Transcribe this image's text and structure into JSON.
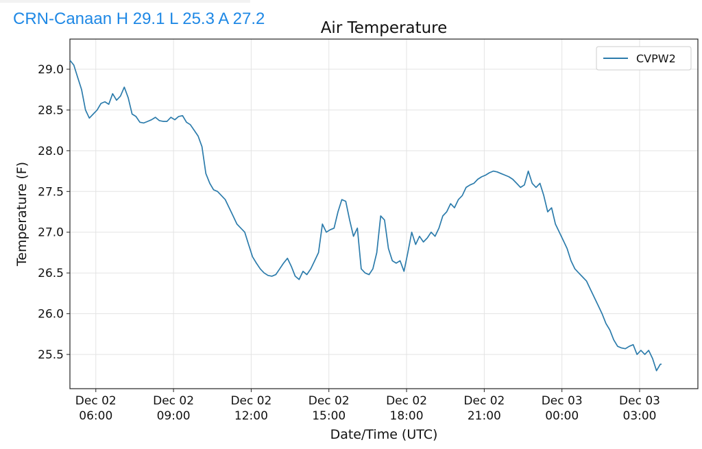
{
  "header": {
    "station_summary": "CRN-Canaan H 29.1 L 25.3 A 27.2"
  },
  "colors": {
    "header_text": "#1e88e5",
    "series_line": "#2b7bab",
    "grid": "#e3e3e3"
  },
  "chart_data": {
    "type": "line",
    "title": "Air Temperature",
    "xlabel": "Date/Time (UTC)",
    "ylabel": "Temperature (F)",
    "x_unit": "hours",
    "x_start": "Dec 02 05:00 UTC",
    "xlim": [
      "Dec 02 05:00",
      "Dec 03 05:15"
    ],
    "ylim": [
      25.08,
      29.37
    ],
    "grid": true,
    "legend_position": "top-right",
    "yticks": [
      {
        "value": 25.5,
        "label": "25.5"
      },
      {
        "value": 26.0,
        "label": "26.0"
      },
      {
        "value": 26.5,
        "label": "26.5"
      },
      {
        "value": 27.0,
        "label": "27.0"
      },
      {
        "value": 27.5,
        "label": "27.5"
      },
      {
        "value": 28.0,
        "label": "28.0"
      },
      {
        "value": 28.5,
        "label": "28.5"
      },
      {
        "value": 29.0,
        "label": "29.0"
      }
    ],
    "xticks": [
      {
        "value": "Dec 02 06:00",
        "line1": "Dec 02",
        "line2": "06:00"
      },
      {
        "value": "Dec 02 09:00",
        "line1": "Dec 02",
        "line2": "09:00"
      },
      {
        "value": "Dec 02 12:00",
        "line1": "Dec 02",
        "line2": "12:00"
      },
      {
        "value": "Dec 02 15:00",
        "line1": "Dec 02",
        "line2": "15:00"
      },
      {
        "value": "Dec 02 18:00",
        "line1": "Dec 02",
        "line2": "18:00"
      },
      {
        "value": "Dec 02 21:00",
        "line1": "Dec 02",
        "line2": "21:00"
      },
      {
        "value": "Dec 03 00:00",
        "line1": "Dec 03",
        "line2": "00:00"
      },
      {
        "value": "Dec 03 03:00",
        "line1": "Dec 03",
        "line2": "03:00"
      }
    ],
    "series": [
      {
        "name": "CVPW2",
        "points": [
          [
            "Dec 02 05:00",
            29.11
          ],
          [
            "Dec 02 05:09",
            29.05
          ],
          [
            "Dec 02 05:18",
            28.9
          ],
          [
            "Dec 02 05:27",
            28.75
          ],
          [
            "Dec 02 05:36",
            28.5
          ],
          [
            "Dec 02 05:45",
            28.4
          ],
          [
            "Dec 02 05:54",
            28.45
          ],
          [
            "Dec 02 06:03",
            28.5
          ],
          [
            "Dec 02 06:12",
            28.58
          ],
          [
            "Dec 02 06:21",
            28.6
          ],
          [
            "Dec 02 06:30",
            28.57
          ],
          [
            "Dec 02 06:39",
            28.7
          ],
          [
            "Dec 02 06:48",
            28.62
          ],
          [
            "Dec 02 06:57",
            28.67
          ],
          [
            "Dec 02 07:06",
            28.78
          ],
          [
            "Dec 02 07:15",
            28.65
          ],
          [
            "Dec 02 07:24",
            28.45
          ],
          [
            "Dec 02 07:33",
            28.42
          ],
          [
            "Dec 02 07:42",
            28.35
          ],
          [
            "Dec 02 07:51",
            28.34
          ],
          [
            "Dec 02 08:00",
            28.36
          ],
          [
            "Dec 02 08:09",
            28.38
          ],
          [
            "Dec 02 08:18",
            28.41
          ],
          [
            "Dec 02 08:27",
            28.37
          ],
          [
            "Dec 02 08:36",
            28.36
          ],
          [
            "Dec 02 08:45",
            28.36
          ],
          [
            "Dec 02 08:54",
            28.41
          ],
          [
            "Dec 02 09:03",
            28.38
          ],
          [
            "Dec 02 09:12",
            28.42
          ],
          [
            "Dec 02 09:21",
            28.43
          ],
          [
            "Dec 02 09:30",
            28.35
          ],
          [
            "Dec 02 09:39",
            28.32
          ],
          [
            "Dec 02 09:48",
            28.25
          ],
          [
            "Dec 02 09:57",
            28.18
          ],
          [
            "Dec 02 10:06",
            28.05
          ],
          [
            "Dec 02 10:15",
            27.72
          ],
          [
            "Dec 02 10:24",
            27.6
          ],
          [
            "Dec 02 10:33",
            27.52
          ],
          [
            "Dec 02 10:42",
            27.5
          ],
          [
            "Dec 02 10:51",
            27.45
          ],
          [
            "Dec 02 11:00",
            27.4
          ],
          [
            "Dec 02 11:09",
            27.3
          ],
          [
            "Dec 02 11:18",
            27.2
          ],
          [
            "Dec 02 11:27",
            27.1
          ],
          [
            "Dec 02 11:36",
            27.05
          ],
          [
            "Dec 02 11:45",
            27.0
          ],
          [
            "Dec 02 11:54",
            26.85
          ],
          [
            "Dec 02 12:03",
            26.7
          ],
          [
            "Dec 02 12:12",
            26.62
          ],
          [
            "Dec 02 12:21",
            26.55
          ],
          [
            "Dec 02 12:30",
            26.5
          ],
          [
            "Dec 02 12:39",
            26.47
          ],
          [
            "Dec 02 12:48",
            26.46
          ],
          [
            "Dec 02 12:57",
            26.48
          ],
          [
            "Dec 02 13:06",
            26.55
          ],
          [
            "Dec 02 13:15",
            26.62
          ],
          [
            "Dec 02 13:24",
            26.68
          ],
          [
            "Dec 02 13:33",
            26.58
          ],
          [
            "Dec 02 13:42",
            26.46
          ],
          [
            "Dec 02 13:51",
            26.42
          ],
          [
            "Dec 02 14:00",
            26.52
          ],
          [
            "Dec 02 14:09",
            26.48
          ],
          [
            "Dec 02 14:18",
            26.55
          ],
          [
            "Dec 02 14:27",
            26.65
          ],
          [
            "Dec 02 14:36",
            26.75
          ],
          [
            "Dec 02 14:45",
            27.1
          ],
          [
            "Dec 02 14:54",
            27.0
          ],
          [
            "Dec 02 15:03",
            27.03
          ],
          [
            "Dec 02 15:12",
            27.05
          ],
          [
            "Dec 02 15:21",
            27.25
          ],
          [
            "Dec 02 15:30",
            27.4
          ],
          [
            "Dec 02 15:39",
            27.38
          ],
          [
            "Dec 02 15:48",
            27.15
          ],
          [
            "Dec 02 15:57",
            26.95
          ],
          [
            "Dec 02 16:06",
            27.05
          ],
          [
            "Dec 02 16:15",
            26.55
          ],
          [
            "Dec 02 16:24",
            26.5
          ],
          [
            "Dec 02 16:33",
            26.48
          ],
          [
            "Dec 02 16:42",
            26.55
          ],
          [
            "Dec 02 16:51",
            26.75
          ],
          [
            "Dec 02 17:00",
            27.2
          ],
          [
            "Dec 02 17:09",
            27.15
          ],
          [
            "Dec 02 17:18",
            26.8
          ],
          [
            "Dec 02 17:27",
            26.65
          ],
          [
            "Dec 02 17:36",
            26.62
          ],
          [
            "Dec 02 17:45",
            26.65
          ],
          [
            "Dec 02 17:54",
            26.52
          ],
          [
            "Dec 02 18:03",
            26.75
          ],
          [
            "Dec 02 18:12",
            27.0
          ],
          [
            "Dec 02 18:21",
            26.85
          ],
          [
            "Dec 02 18:30",
            26.95
          ],
          [
            "Dec 02 18:39",
            26.88
          ],
          [
            "Dec 02 18:48",
            26.93
          ],
          [
            "Dec 02 18:57",
            27.0
          ],
          [
            "Dec 02 19:06",
            26.95
          ],
          [
            "Dec 02 19:15",
            27.05
          ],
          [
            "Dec 02 19:24",
            27.2
          ],
          [
            "Dec 02 19:33",
            27.25
          ],
          [
            "Dec 02 19:42",
            27.35
          ],
          [
            "Dec 02 19:51",
            27.3
          ],
          [
            "Dec 02 20:00",
            27.4
          ],
          [
            "Dec 02 20:09",
            27.45
          ],
          [
            "Dec 02 20:18",
            27.55
          ],
          [
            "Dec 02 20:27",
            27.58
          ],
          [
            "Dec 02 20:36",
            27.6
          ],
          [
            "Dec 02 20:45",
            27.65
          ],
          [
            "Dec 02 20:54",
            27.68
          ],
          [
            "Dec 02 21:03",
            27.7
          ],
          [
            "Dec 02 21:12",
            27.73
          ],
          [
            "Dec 02 21:21",
            27.75
          ],
          [
            "Dec 02 21:30",
            27.74
          ],
          [
            "Dec 02 21:39",
            27.72
          ],
          [
            "Dec 02 21:48",
            27.7
          ],
          [
            "Dec 02 21:57",
            27.68
          ],
          [
            "Dec 02 22:06",
            27.65
          ],
          [
            "Dec 02 22:15",
            27.6
          ],
          [
            "Dec 02 22:24",
            27.55
          ],
          [
            "Dec 02 22:33",
            27.58
          ],
          [
            "Dec 02 22:42",
            27.75
          ],
          [
            "Dec 02 22:51",
            27.6
          ],
          [
            "Dec 02 23:00",
            27.55
          ],
          [
            "Dec 02 23:09",
            27.6
          ],
          [
            "Dec 02 23:18",
            27.45
          ],
          [
            "Dec 02 23:27",
            27.25
          ],
          [
            "Dec 02 23:36",
            27.3
          ],
          [
            "Dec 02 23:45",
            27.1
          ],
          [
            "Dec 02 23:54",
            27.0
          ],
          [
            "Dec 03 00:03",
            26.9
          ],
          [
            "Dec 03 00:12",
            26.8
          ],
          [
            "Dec 03 00:21",
            26.65
          ],
          [
            "Dec 03 00:30",
            26.55
          ],
          [
            "Dec 03 00:39",
            26.5
          ],
          [
            "Dec 03 00:48",
            26.45
          ],
          [
            "Dec 03 00:57",
            26.4
          ],
          [
            "Dec 03 01:06",
            26.3
          ],
          [
            "Dec 03 01:15",
            26.2
          ],
          [
            "Dec 03 01:24",
            26.1
          ],
          [
            "Dec 03 01:33",
            26.0
          ],
          [
            "Dec 03 01:42",
            25.88
          ],
          [
            "Dec 03 01:51",
            25.8
          ],
          [
            "Dec 03 02:00",
            25.68
          ],
          [
            "Dec 03 02:09",
            25.6
          ],
          [
            "Dec 03 02:18",
            25.58
          ],
          [
            "Dec 03 02:27",
            25.57
          ],
          [
            "Dec 03 02:36",
            25.6
          ],
          [
            "Dec 03 02:45",
            25.62
          ],
          [
            "Dec 03 02:54",
            25.5
          ],
          [
            "Dec 03 03:03",
            25.55
          ],
          [
            "Dec 03 03:12",
            25.5
          ],
          [
            "Dec 03 03:21",
            25.55
          ],
          [
            "Dec 03 03:30",
            25.45
          ],
          [
            "Dec 03 03:39",
            25.3
          ],
          [
            "Dec 03 03:48",
            25.38
          ],
          [
            "Dec 03 03:51",
            25.38
          ]
        ]
      }
    ]
  }
}
